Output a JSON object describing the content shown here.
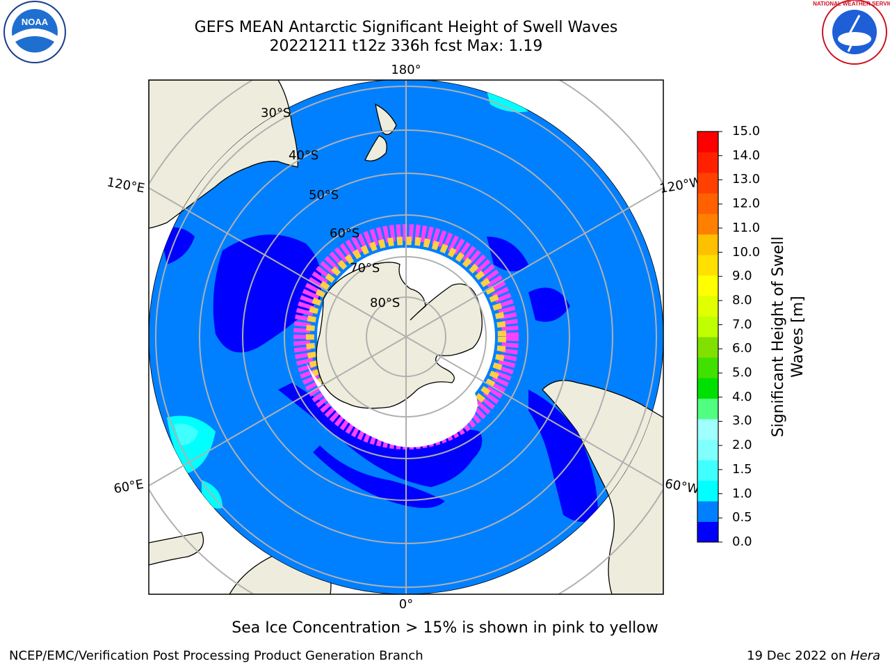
{
  "title": {
    "line1": "GEFS MEAN Antarctic Significant Height of Swell Waves",
    "line2": "20221211 t12z 336h fcst   Max: 1.19"
  },
  "logos": {
    "left": {
      "name": "noaa-logo",
      "text": "NOAA"
    },
    "right": {
      "name": "nws-logo",
      "text": "NATIONAL WEATHER SERVICE"
    }
  },
  "map": {
    "projection": "south-polar-stereographic",
    "longitude_labels": {
      "top": "180°",
      "bottom": "0°",
      "upper_left": "120°E",
      "lower_left": "60°E",
      "upper_right": "120°W",
      "lower_right": "60°W"
    },
    "latitude_labels": [
      "30°S",
      "40°S",
      "50°S",
      "60°S",
      "70°S",
      "80°S"
    ],
    "colors": {
      "land": "#eeecdc",
      "ocean_0_0_5": "#0000ff",
      "ocean_0_5_1_0": "#0080ff",
      "ocean_1_0_1_5": "#00ffff",
      "ice_pink": "#ff40ff",
      "ice_yellow": "#ffd040",
      "ice_white": "#ffffff",
      "grid": "#b0b0b0"
    }
  },
  "colorbar": {
    "title": "Significant Height of Swell Waves [m]",
    "ticks": [
      "15.0",
      "14.0",
      "13.0",
      "12.0",
      "11.0",
      "10.0",
      "9.0",
      "8.0",
      "7.0",
      "6.0",
      "5.0",
      "4.0",
      "3.0",
      "2.0",
      "1.5",
      "1.0",
      "0.5",
      "0.0"
    ],
    "colors_bottom_to_top": [
      "#0000ff",
      "#0080ff",
      "#00ffff",
      "#40ffff",
      "#80ffff",
      "#a0ffff",
      "#50ff80",
      "#00e000",
      "#40e000",
      "#80e000",
      "#c0ff00",
      "#e0ff00",
      "#ffff00",
      "#ffe000",
      "#ffc000",
      "#ff8000",
      "#ff6000",
      "#ff4000",
      "#ff2000",
      "#ff0000"
    ]
  },
  "caption": "Sea Ice Concentration > 15% is shown in pink to yellow",
  "footer": {
    "left": "NCEP/EMC/Verification Post Processing Product Generation Branch",
    "right_prefix": "19 Dec 2022 on ",
    "right_host": "Hera"
  }
}
